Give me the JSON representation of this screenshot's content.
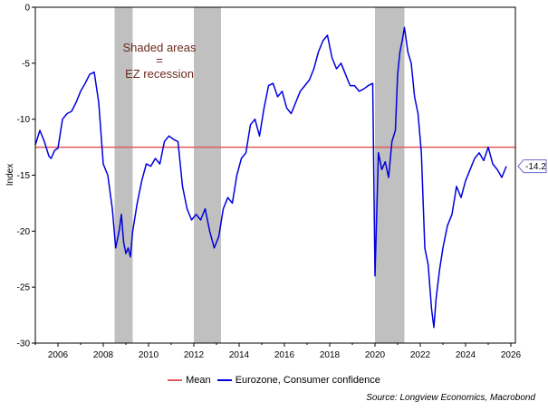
{
  "chart_data": {
    "type": "line",
    "title": "",
    "xlabel": "",
    "ylabel": "Index",
    "xlim": [
      2005.0,
      2026.2
    ],
    "ylim": [
      -30,
      0
    ],
    "x_ticks": [
      2006,
      2008,
      2010,
      2012,
      2014,
      2016,
      2018,
      2020,
      2022,
      2024,
      2026
    ],
    "y_ticks": [
      0,
      -5,
      -10,
      -15,
      -20,
      -25,
      -30
    ],
    "recessions": [
      [
        2008.5,
        2009.3
      ],
      [
        2012.0,
        2013.2
      ],
      [
        2020.0,
        2021.3
      ]
    ],
    "annotation": [
      "Shaded areas",
      "=",
      "EZ recession"
    ],
    "mean": {
      "name": "Mean",
      "value": -12.5,
      "color": "#e05a5a"
    },
    "series": [
      {
        "name": "Eurozone, Consumer confidence",
        "color": "#0000dd",
        "last_value_label": "-14.2",
        "x": [
          2005.0,
          2005.2,
          2005.4,
          2005.6,
          2005.7,
          2005.85,
          2006.0,
          2006.2,
          2006.4,
          2006.6,
          2006.8,
          2007.0,
          2007.2,
          2007.4,
          2007.6,
          2007.8,
          2008.0,
          2008.2,
          2008.4,
          2008.55,
          2008.7,
          2008.8,
          2008.9,
          2009.0,
          2009.1,
          2009.2,
          2009.3,
          2009.5,
          2009.7,
          2009.9,
          2010.1,
          2010.3,
          2010.5,
          2010.7,
          2010.9,
          2011.1,
          2011.3,
          2011.5,
          2011.7,
          2011.9,
          2012.1,
          2012.3,
          2012.5,
          2012.7,
          2012.9,
          2013.1,
          2013.3,
          2013.5,
          2013.7,
          2013.9,
          2014.1,
          2014.3,
          2014.5,
          2014.7,
          2014.9,
          2015.1,
          2015.3,
          2015.5,
          2015.7,
          2015.9,
          2016.1,
          2016.3,
          2016.5,
          2016.7,
          2016.9,
          2017.1,
          2017.3,
          2017.5,
          2017.7,
          2017.9,
          2018.1,
          2018.3,
          2018.5,
          2018.7,
          2018.9,
          2019.1,
          2019.3,
          2019.5,
          2019.7,
          2019.9,
          2020.0,
          2020.15,
          2020.3,
          2020.45,
          2020.6,
          2020.75,
          2020.9,
          2021.0,
          2021.1,
          2021.2,
          2021.3,
          2021.45,
          2021.6,
          2021.75,
          2021.9,
          2022.05,
          2022.2,
          2022.35,
          2022.5,
          2022.6,
          2022.7,
          2022.85,
          2023.0,
          2023.2,
          2023.4,
          2023.6,
          2023.8,
          2024.0,
          2024.2,
          2024.4,
          2024.6,
          2024.8,
          2025.0,
          2025.2,
          2025.4,
          2025.6,
          2025.8
        ],
        "y": [
          -12.3,
          -11.0,
          -12.0,
          -13.3,
          -13.5,
          -12.8,
          -12.6,
          -10.0,
          -9.5,
          -9.3,
          -8.5,
          -7.5,
          -6.8,
          -6.0,
          -5.8,
          -8.5,
          -14.0,
          -15.0,
          -18.0,
          -21.5,
          -20.0,
          -18.5,
          -21.0,
          -22.0,
          -21.5,
          -22.3,
          -20.0,
          -17.5,
          -15.5,
          -14.0,
          -14.2,
          -13.5,
          -14.0,
          -12.0,
          -11.5,
          -11.8,
          -12.0,
          -16.0,
          -18.0,
          -19.0,
          -18.5,
          -19.0,
          -18.0,
          -20.0,
          -21.5,
          -20.5,
          -18.0,
          -17.0,
          -17.5,
          -15.0,
          -13.5,
          -13.0,
          -10.5,
          -10.0,
          -11.5,
          -9.0,
          -7.0,
          -6.8,
          -8.0,
          -7.5,
          -9.0,
          -9.5,
          -8.5,
          -7.5,
          -7.0,
          -6.5,
          -5.5,
          -4.0,
          -3.0,
          -2.5,
          -4.5,
          -5.5,
          -5.0,
          -6.0,
          -7.0,
          -7.0,
          -7.5,
          -7.3,
          -7.0,
          -6.8,
          -24.0,
          -13.0,
          -14.5,
          -13.8,
          -15.2,
          -12.0,
          -11.0,
          -6.0,
          -4.0,
          -3.0,
          -1.8,
          -4.0,
          -5.0,
          -8.0,
          -9.5,
          -13.0,
          -21.5,
          -23.0,
          -27.0,
          -28.6,
          -26.0,
          -23.5,
          -21.5,
          -19.5,
          -18.5,
          -16.0,
          -17.0,
          -15.5,
          -14.5,
          -13.5,
          -13.0,
          -13.7,
          -12.5,
          -14.0,
          -14.5,
          -15.2,
          -14.2
        ]
      }
    ],
    "legend_position": "bottom",
    "source": "Source: Longview Economics, Macrobond"
  }
}
